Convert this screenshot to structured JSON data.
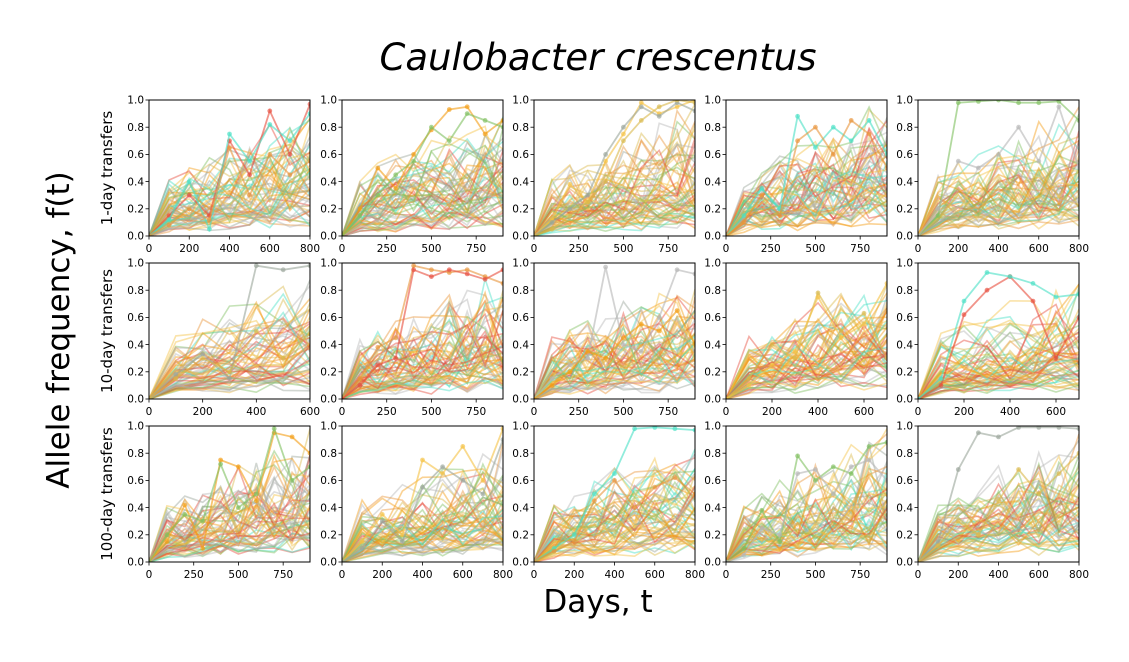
{
  "figure": {
    "title": "Caulobacter crescentus",
    "xlabel": "Days, t",
    "ylabel": "Allele frequency, f(t)"
  },
  "chart_data": {
    "type": "line",
    "description": "",
    "colors": [
      "#e74c3c",
      "#f39c12",
      "#f5c242",
      "#48e0c5",
      "#7fbf5f",
      "#9aa59a",
      "#e8943a",
      "#b5b5b5",
      "#d9b84a"
    ],
    "rows": [
      "1-day transfers",
      "10-day transfers",
      "100-day transfers"
    ],
    "yticks": [
      "0.0",
      "0.2",
      "0.4",
      "0.6",
      "0.8",
      "1.0"
    ],
    "ylim": [
      0,
      1
    ],
    "panels": [
      {
        "row": 0,
        "col": 0,
        "xlim": [
          0,
          800
        ],
        "xticks": [
          0,
          200,
          400,
          600,
          800
        ],
        "highlights": [
          {
            "x": [
              0,
              100,
              200,
              300,
              400,
              500,
              600,
              700,
              800
            ],
            "y": [
              0,
              0.15,
              0.3,
              0.15,
              0.7,
              0.45,
              0.92,
              0.6,
              0.97
            ]
          },
          {
            "x": [
              0,
              100,
              200,
              300,
              400,
              500,
              600,
              700,
              800
            ],
            "y": [
              0,
              0.12,
              0.4,
              0.05,
              0.75,
              0.55,
              0.82,
              0.7,
              0.9
            ]
          },
          {
            "x": [
              0,
              100,
              200,
              300,
              400,
              500,
              600,
              700,
              800
            ],
            "y": [
              0,
              0.08,
              0.2,
              0.12,
              0.65,
              0.3,
              0.6,
              0.45,
              0.55
            ]
          }
        ]
      },
      {
        "row": 0,
        "col": 1,
        "xlim": [
          0,
          900
        ],
        "xticks": [
          0,
          250,
          500,
          750
        ],
        "highlights": [
          {
            "x": [
              0,
              100,
              200,
              300,
              400,
              500,
              600,
              700,
              800,
              900
            ],
            "y": [
              0,
              0.2,
              0.5,
              0.35,
              0.6,
              0.78,
              0.93,
              0.95,
              0.75,
              0.85
            ]
          },
          {
            "x": [
              0,
              100,
              200,
              300,
              400,
              500,
              600,
              700,
              800,
              900
            ],
            "y": [
              0,
              0.15,
              0.3,
              0.45,
              0.55,
              0.8,
              0.7,
              0.9,
              0.85,
              0.8
            ]
          }
        ]
      },
      {
        "row": 0,
        "col": 2,
        "xlim": [
          0,
          900
        ],
        "xticks": [
          0,
          250,
          500,
          750
        ],
        "highlights": [
          {
            "x": [
              0,
              100,
              200,
              300,
              400,
              500,
              600,
              700,
              800,
              900
            ],
            "y": [
              0,
              0.12,
              0.38,
              0.25,
              0.55,
              0.75,
              0.98,
              0.9,
              0.95,
              1.0
            ]
          },
          {
            "x": [
              0,
              100,
              200,
              300,
              400,
              500,
              600,
              700,
              800,
              900
            ],
            "y": [
              0,
              0.1,
              0.2,
              0.3,
              0.6,
              0.8,
              0.95,
              0.88,
              0.98,
              0.92
            ]
          },
          {
            "x": [
              0,
              100,
              200,
              300,
              400,
              500,
              600,
              700,
              800,
              900
            ],
            "y": [
              0,
              0.05,
              0.15,
              0.25,
              0.4,
              0.7,
              0.85,
              0.95,
              1.0,
              0.98
            ]
          }
        ]
      },
      {
        "row": 0,
        "col": 3,
        "xlim": [
          0,
          900
        ],
        "xticks": [
          0,
          250,
          500,
          750
        ],
        "highlights": [
          {
            "x": [
              0,
              100,
              200,
              300,
              400,
              500,
              600,
              700,
              800,
              900
            ],
            "y": [
              0,
              0.15,
              0.35,
              0.2,
              0.88,
              0.65,
              0.8,
              0.7,
              0.85,
              0.6
            ]
          },
          {
            "x": [
              0,
              100,
              200,
              300,
              400,
              500,
              600,
              700,
              800,
              900
            ],
            "y": [
              0,
              0.1,
              0.3,
              0.15,
              0.7,
              0.8,
              0.6,
              0.85,
              0.75,
              0.5
            ]
          }
        ]
      },
      {
        "row": 0,
        "col": 4,
        "xlim": [
          0,
          800
        ],
        "xticks": [
          0,
          200,
          400,
          600,
          800
        ],
        "highlights": [
          {
            "x": [
              0,
              100,
              200,
              300,
              400,
              500,
              600,
              700,
              800
            ],
            "y": [
              0,
              0.15,
              0.98,
              0.99,
              1.0,
              0.98,
              0.98,
              0.99,
              0.85
            ]
          },
          {
            "x": [
              0,
              100,
              200,
              300,
              400,
              500,
              600,
              700,
              800
            ],
            "y": [
              0,
              0.2,
              0.55,
              0.5,
              0.6,
              0.8,
              0.55,
              0.95,
              0.5
            ]
          }
        ]
      },
      {
        "row": 1,
        "col": 0,
        "xlim": [
          0,
          600
        ],
        "xticks": [
          0,
          200,
          400,
          600
        ],
        "highlights": [
          {
            "x": [
              0,
              100,
              200,
              300,
              400,
              500,
              600
            ],
            "y": [
              0,
              0.18,
              0.33,
              0.15,
              0.98,
              0.95,
              0.98
            ]
          },
          {
            "x": [
              0,
              100,
              200,
              300,
              400,
              500,
              600
            ],
            "y": [
              0,
              0.15,
              0.3,
              0.2,
              0.5,
              0.3,
              0.48
            ]
          }
        ]
      },
      {
        "row": 1,
        "col": 1,
        "xlim": [
          0,
          900
        ],
        "xticks": [
          0,
          250,
          500,
          750
        ],
        "highlights": [
          {
            "x": [
              0,
              100,
              200,
              300,
              400,
              500,
              600,
              700,
              800,
              900
            ],
            "y": [
              0,
              0.15,
              0.38,
              0.45,
              0.98,
              0.95,
              0.93,
              0.95,
              0.9,
              0.85
            ]
          },
          {
            "x": [
              0,
              100,
              200,
              300,
              400,
              500,
              600,
              700,
              800,
              900
            ],
            "y": [
              0,
              0.1,
              0.25,
              0.3,
              0.95,
              0.9,
              0.95,
              0.92,
              0.88,
              0.95
            ]
          }
        ]
      },
      {
        "row": 1,
        "col": 2,
        "xlim": [
          0,
          900
        ],
        "xticks": [
          0,
          250,
          500,
          750
        ],
        "highlights": [
          {
            "x": [
              0,
              100,
              200,
              300,
              400,
              500,
              600,
              700,
              800,
              900
            ],
            "y": [
              0,
              0.15,
              0.25,
              0.3,
              0.97,
              0.4,
              0.35,
              0.6,
              0.95,
              0.92
            ]
          },
          {
            "x": [
              0,
              100,
              200,
              300,
              400,
              500,
              600,
              700,
              800,
              900
            ],
            "y": [
              0,
              0.1,
              0.2,
              0.35,
              0.3,
              0.45,
              0.55,
              0.5,
              0.65,
              0.4
            ]
          }
        ]
      },
      {
        "row": 1,
        "col": 3,
        "xlim": [
          0,
          700
        ],
        "xticks": [
          0,
          200,
          400,
          600
        ],
        "highlights": [
          {
            "x": [
              0,
              100,
              200,
              300,
              400,
              500,
              600,
              700
            ],
            "y": [
              0,
              0.15,
              0.4,
              0.3,
              0.78,
              0.5,
              0.63,
              0.3
            ]
          },
          {
            "x": [
              0,
              100,
              200,
              300,
              400,
              500,
              600,
              700
            ],
            "y": [
              0,
              0.1,
              0.25,
              0.35,
              0.75,
              0.45,
              0.55,
              0.85
            ]
          }
        ]
      },
      {
        "row": 1,
        "col": 4,
        "xlim": [
          0,
          700
        ],
        "xticks": [
          0,
          200,
          400,
          600
        ],
        "highlights": [
          {
            "x": [
              0,
              100,
              200,
              300,
              400,
              500,
              600,
              700
            ],
            "y": [
              0,
              0.1,
              0.62,
              0.8,
              0.9,
              0.72,
              0.3,
              0.6
            ]
          },
          {
            "x": [
              0,
              100,
              200,
              300,
              400,
              500,
              600,
              700
            ],
            "y": [
              0,
              0.15,
              0.72,
              0.93,
              0.9,
              0.85,
              0.75,
              0.77
            ]
          }
        ]
      },
      {
        "row": 2,
        "col": 0,
        "xlim": [
          0,
          900
        ],
        "xticks": [
          0,
          250,
          500,
          750
        ],
        "highlights": [
          {
            "x": [
              0,
              100,
              200,
              300,
              400,
              500,
              600,
              700,
              800,
              900
            ],
            "y": [
              0,
              0.15,
              0.42,
              0.1,
              0.75,
              0.7,
              0.45,
              0.95,
              0.92,
              0.8
            ]
          },
          {
            "x": [
              0,
              100,
              200,
              300,
              400,
              500,
              600,
              700,
              800,
              900
            ],
            "y": [
              0,
              0.2,
              0.35,
              0.3,
              0.72,
              0.4,
              0.5,
              0.98,
              0.6,
              0.7
            ]
          }
        ]
      },
      {
        "row": 2,
        "col": 1,
        "xlim": [
          0,
          800
        ],
        "xticks": [
          0,
          200,
          400,
          600,
          800
        ],
        "highlights": [
          {
            "x": [
              0,
              100,
              200,
              300,
              400,
              500,
              600,
              700,
              800
            ],
            "y": [
              0,
              0.15,
              0.35,
              0.2,
              0.75,
              0.65,
              0.85,
              0.6,
              0.98
            ]
          },
          {
            "x": [
              0,
              100,
              200,
              300,
              400,
              500,
              600,
              700,
              800
            ],
            "y": [
              0,
              0.1,
              0.3,
              0.15,
              0.55,
              0.7,
              0.6,
              0.5,
              0.9
            ]
          }
        ]
      },
      {
        "row": 2,
        "col": 2,
        "xlim": [
          0,
          800
        ],
        "xticks": [
          0,
          200,
          400,
          600,
          800
        ],
        "highlights": [
          {
            "x": [
              0,
              100,
              200,
              300,
              400,
              500,
              600,
              700,
              800
            ],
            "y": [
              0,
              0.1,
              0.2,
              0.5,
              0.65,
              0.98,
              0.99,
              0.98,
              0.97
            ]
          },
          {
            "x": [
              0,
              100,
              200,
              300,
              400,
              500,
              600,
              700,
              800
            ],
            "y": [
              0,
              0.08,
              0.15,
              0.45,
              0.6,
              0.4,
              0.55,
              0.62,
              0.5
            ]
          }
        ]
      },
      {
        "row": 2,
        "col": 3,
        "xlim": [
          0,
          900
        ],
        "xticks": [
          0,
          250,
          500,
          750
        ],
        "highlights": [
          {
            "x": [
              0,
              100,
              200,
              300,
              400,
              500,
              600,
              700,
              800,
              900
            ],
            "y": [
              0,
              0.1,
              0.38,
              0.15,
              0.78,
              0.6,
              0.7,
              0.65,
              0.85,
              0.88
            ]
          },
          {
            "x": [
              0,
              100,
              200,
              300,
              400,
              500,
              600,
              700,
              800,
              900
            ],
            "y": [
              0,
              0.05,
              0.25,
              0.2,
              0.65,
              0.68,
              0.5,
              0.7,
              0.75,
              0.6
            ]
          }
        ]
      },
      {
        "row": 2,
        "col": 4,
        "xlim": [
          0,
          800
        ],
        "xticks": [
          0,
          200,
          400,
          600,
          800
        ],
        "highlights": [
          {
            "x": [
              0,
              100,
              200,
              300,
              400,
              500,
              600,
              700,
              800
            ],
            "y": [
              0,
              0.15,
              0.68,
              0.95,
              0.92,
              0.99,
              0.99,
              0.99,
              0.98
            ]
          },
          {
            "x": [
              0,
              100,
              200,
              300,
              400,
              500,
              600,
              700,
              800
            ],
            "y": [
              0,
              0.12,
              0.3,
              0.2,
              0.45,
              0.68,
              0.5,
              0.65,
              0.8
            ]
          }
        ]
      }
    ]
  }
}
